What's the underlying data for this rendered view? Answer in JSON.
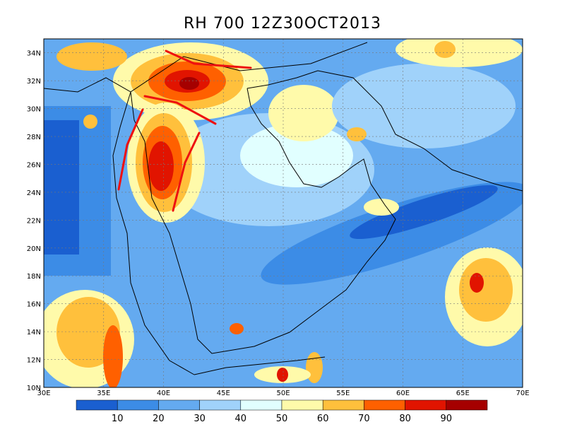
{
  "title": "RH 700 12Z30OCT2013",
  "map": {
    "lat_labels": [
      "10N",
      "12N",
      "14N",
      "16N",
      "18N",
      "20N",
      "22N",
      "24N",
      "26N",
      "28N",
      "30N",
      "32N",
      "34N"
    ],
    "lon_labels": [
      "30E",
      "35E",
      "40E",
      "45E",
      "50E",
      "55E",
      "60E",
      "65E",
      "70E"
    ]
  },
  "colorbar": {
    "labels": [
      "10",
      "20",
      "30",
      "40",
      "50",
      "60",
      "70",
      "80",
      "90"
    ]
  }
}
